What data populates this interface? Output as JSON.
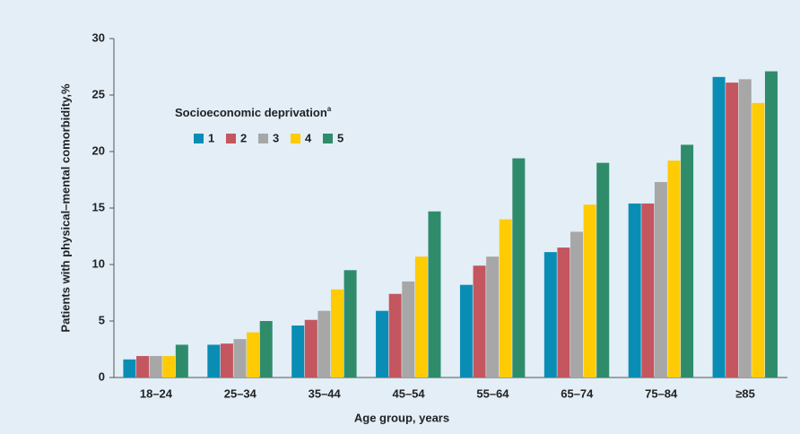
{
  "chart_data": {
    "type": "bar",
    "x_label": "Age group, years",
    "y_label": "Patients with physical–mental comorbidity,%",
    "legend_title": "Socioeconomic deprivation",
    "legend_title_superscript": "a",
    "categories": [
      "18–24",
      "25–34",
      "35–44",
      "45–54",
      "55–64",
      "65–74",
      "75–84",
      "≥85"
    ],
    "series": [
      {
        "name": "1",
        "color": "#0a8db4",
        "values": [
          1.6,
          2.9,
          4.6,
          5.9,
          8.2,
          11.1,
          15.4,
          26.6
        ]
      },
      {
        "name": "2",
        "color": "#c3565e",
        "values": [
          1.9,
          3.0,
          5.1,
          7.4,
          9.9,
          11.5,
          15.4,
          26.1
        ]
      },
      {
        "name": "3",
        "color": "#a7a7a7",
        "values": [
          1.9,
          3.4,
          5.9,
          8.5,
          10.7,
          12.9,
          17.3,
          26.4
        ]
      },
      {
        "name": "4",
        "color": "#ffcb05",
        "values": [
          1.9,
          4.0,
          7.8,
          10.7,
          14.0,
          15.3,
          19.2,
          24.3
        ]
      },
      {
        "name": "5",
        "color": "#2f8c6b",
        "values": [
          2.9,
          5.0,
          9.5,
          14.7,
          19.4,
          19.0,
          20.6,
          27.1
        ]
      }
    ],
    "ylim": [
      0,
      30
    ],
    "yticks": [
      0,
      5,
      10,
      15,
      20,
      25,
      30
    ],
    "grid": false
  }
}
